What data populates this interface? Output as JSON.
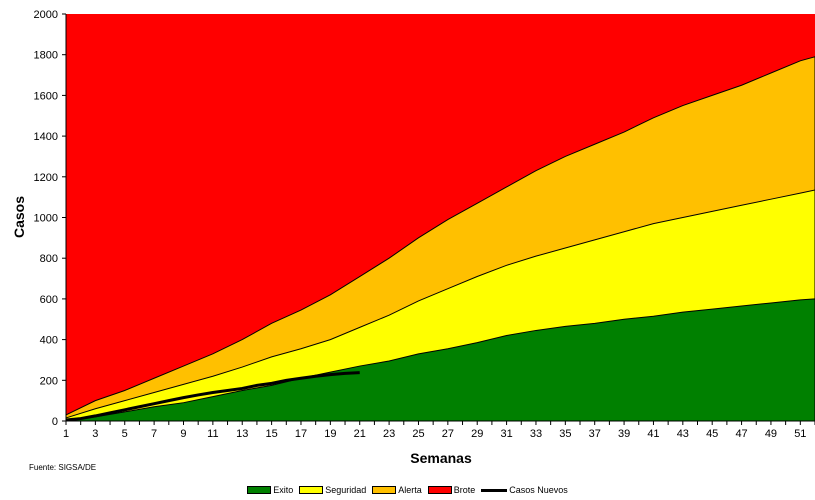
{
  "chart_data": {
    "type": "area",
    "title": "",
    "xlabel": "Semanas",
    "ylabel": "Casos",
    "ylim": [
      0,
      2000
    ],
    "xlim": [
      1,
      52
    ],
    "yticks": [
      0,
      200,
      400,
      600,
      800,
      1000,
      1200,
      1400,
      1600,
      1800,
      2000
    ],
    "xticks": [
      1,
      3,
      5,
      7,
      9,
      11,
      13,
      15,
      17,
      19,
      21,
      23,
      25,
      27,
      29,
      31,
      33,
      35,
      37,
      39,
      41,
      43,
      45,
      47,
      49,
      51
    ],
    "grid": false,
    "legend_position": "bottom",
    "source": "Fuente: SIGSA/DE",
    "colors": {
      "Exito": "#008000",
      "Seguridad": "#ffff00",
      "Alerta": "#ffc000",
      "Brote": "#ff0000",
      "Casos Nuevos": "#000000"
    },
    "series": [
      {
        "name": "Exito",
        "type": "area",
        "x": [
          1,
          3,
          5,
          7,
          9,
          11,
          13,
          15,
          17,
          19,
          21,
          23,
          25,
          27,
          29,
          31,
          33,
          35,
          37,
          39,
          41,
          43,
          45,
          47,
          49,
          51,
          52
        ],
        "values": [
          5,
          20,
          45,
          70,
          90,
          120,
          150,
          175,
          210,
          240,
          270,
          295,
          330,
          355,
          385,
          420,
          445,
          465,
          480,
          500,
          515,
          535,
          550,
          565,
          580,
          595,
          600
        ]
      },
      {
        "name": "Seguridad",
        "type": "area",
        "x": [
          1,
          3,
          5,
          7,
          9,
          11,
          13,
          15,
          17,
          19,
          21,
          23,
          25,
          27,
          29,
          31,
          33,
          35,
          37,
          39,
          41,
          43,
          45,
          47,
          49,
          51,
          52
        ],
        "values": [
          15,
          60,
          100,
          140,
          180,
          220,
          265,
          315,
          355,
          400,
          460,
          520,
          590,
          650,
          710,
          765,
          810,
          850,
          890,
          930,
          970,
          1000,
          1030,
          1060,
          1090,
          1120,
          1135
        ]
      },
      {
        "name": "Alerta",
        "type": "area",
        "x": [
          1,
          3,
          5,
          7,
          9,
          11,
          13,
          15,
          17,
          19,
          21,
          23,
          25,
          27,
          29,
          31,
          33,
          35,
          37,
          39,
          41,
          43,
          45,
          47,
          49,
          51,
          52
        ],
        "values": [
          30,
          100,
          150,
          210,
          270,
          330,
          400,
          480,
          545,
          620,
          710,
          800,
          900,
          990,
          1070,
          1150,
          1230,
          1300,
          1360,
          1420,
          1490,
          1550,
          1600,
          1650,
          1710,
          1770,
          1790
        ]
      },
      {
        "name": "Brote",
        "type": "area",
        "x": [
          1,
          52
        ],
        "values": [
          2000,
          2000
        ]
      },
      {
        "name": "Casos Nuevos",
        "type": "line",
        "x": [
          1,
          2,
          3,
          4,
          5,
          6,
          7,
          8,
          9,
          10,
          11,
          12,
          13,
          14,
          15,
          16,
          17,
          18,
          19,
          20,
          21
        ],
        "values": [
          5,
          12,
          25,
          40,
          55,
          70,
          85,
          100,
          115,
          128,
          140,
          150,
          160,
          175,
          185,
          200,
          210,
          220,
          228,
          234,
          238
        ]
      }
    ]
  }
}
